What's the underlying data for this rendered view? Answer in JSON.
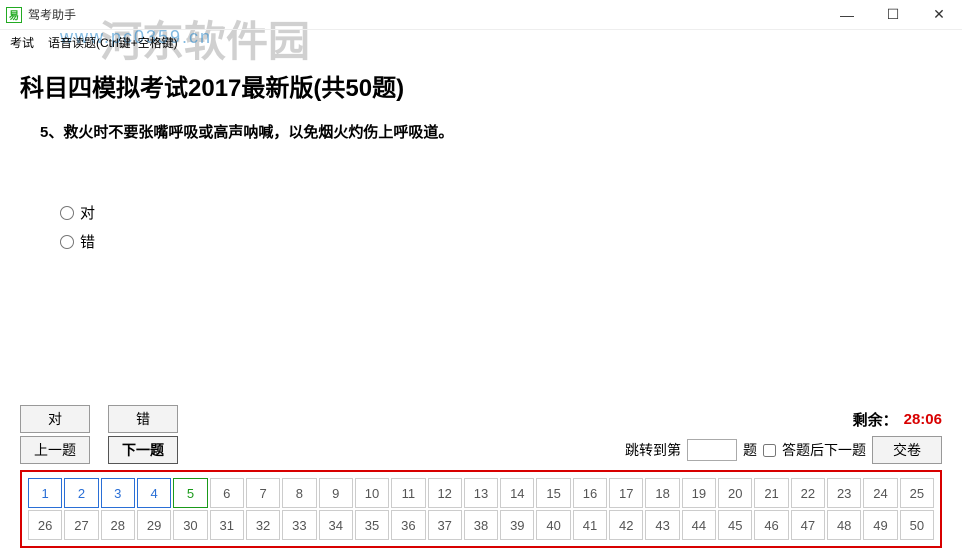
{
  "window": {
    "title": "驾考助手",
    "icon_label": "易"
  },
  "watermark": {
    "text": "河东软件园",
    "url": "www.pc0359.cn"
  },
  "menu": {
    "exam": "考试",
    "read_aloud": "语音读题(Ctrl键+空格键)"
  },
  "page": {
    "title": "科目四模拟考试2017最新版(共50题)"
  },
  "question": {
    "number": "5、",
    "text": "救火时不要张嘴呼吸或高声呐喊，以免烟火灼伤上呼吸道。"
  },
  "options": {
    "opt_true": "对",
    "opt_false": "错"
  },
  "buttons": {
    "true": "对",
    "false": "错",
    "prev": "上一题",
    "next": "下一题",
    "submit": "交卷"
  },
  "timer": {
    "label": "剩余：",
    "value": "28:06"
  },
  "nav": {
    "jump_label_pre": "跳转到第",
    "jump_label_post": "题",
    "auto_next": "答题后下一题"
  },
  "grid": {
    "total": 50,
    "answered": [
      1,
      2,
      3,
      4
    ],
    "current": 5
  }
}
